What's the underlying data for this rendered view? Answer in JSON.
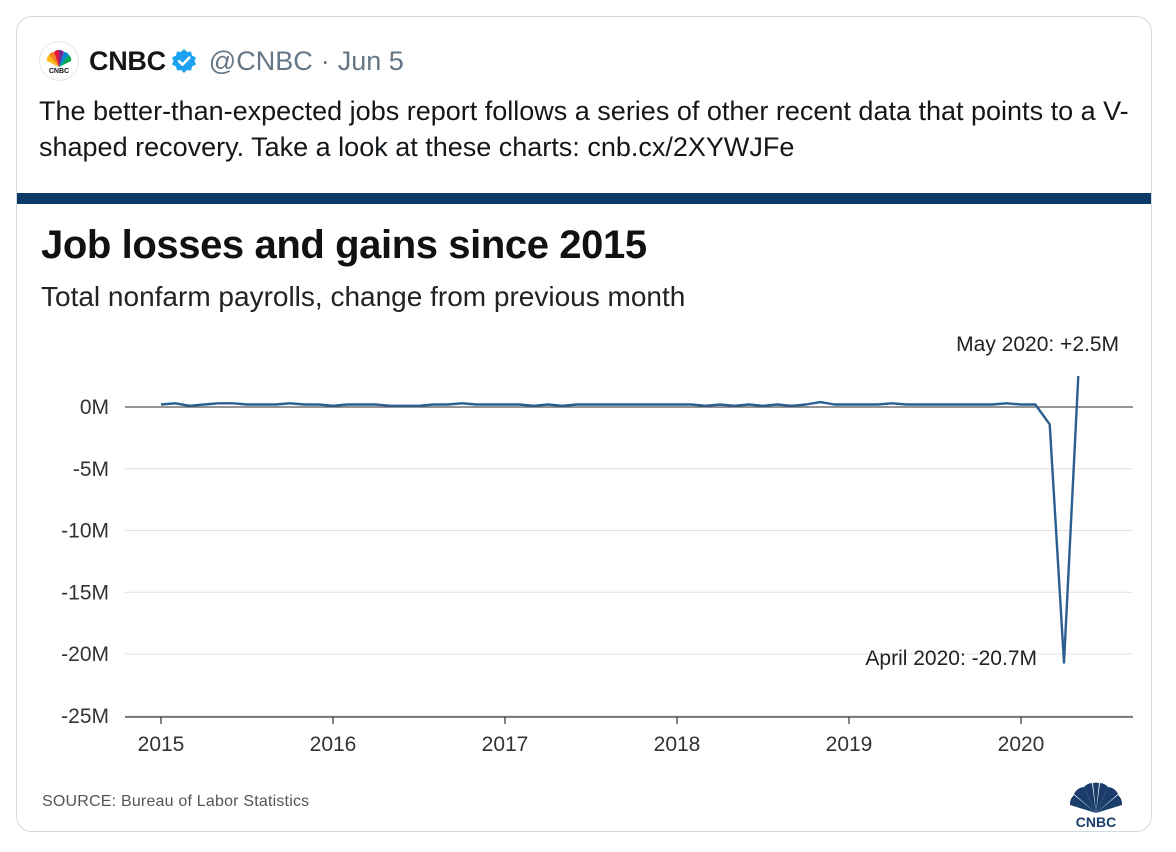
{
  "tweet": {
    "display_name": "CNBC",
    "handle": "@CNBC",
    "separator": "·",
    "date": "Jun 5",
    "verified_icon": "verified-badge-icon",
    "avatar_icon": "cnbc-peacock-logo-icon",
    "text_before_link": "The better-than-expected jobs report follows a series of other recent data that points to a V-shaped recovery. Take a look at these charts: ",
    "link_text": "cnb.cx/2XYWJFe",
    "accent_color": "#1da1f2"
  },
  "chart": {
    "title": "Job losses and gains since 2015",
    "subtitle": "Total nonfarm payrolls, change from previous month",
    "source": "SOURCE: Bureau of Labor Statistics",
    "logo_text": "CNBC",
    "bar_color": "#0b3a66",
    "line_color": "#2a5f8f"
  },
  "chart_data": {
    "type": "line",
    "title": "Job losses and gains since 2015",
    "subtitle": "Total nonfarm payrolls, change from previous month",
    "xlabel": "",
    "ylabel": "",
    "xlim": [
      2015,
      2020.6
    ],
    "ylim": [
      -25,
      2.5
    ],
    "x_ticks": [
      {
        "value": 2015,
        "label": "2015"
      },
      {
        "value": 2016,
        "label": "2016"
      },
      {
        "value": 2017,
        "label": "2017"
      },
      {
        "value": 2018,
        "label": "2018"
      },
      {
        "value": 2019,
        "label": "2019"
      },
      {
        "value": 2020,
        "label": "2020"
      }
    ],
    "y_ticks": [
      {
        "value": 0,
        "label": "0M"
      },
      {
        "value": -5,
        "label": "-5M"
      },
      {
        "value": -10,
        "label": "-10M"
      },
      {
        "value": -15,
        "label": "-15M"
      },
      {
        "value": -20,
        "label": "-20M"
      },
      {
        "value": -25,
        "label": "-25M"
      }
    ],
    "grid": true,
    "legend": "none",
    "series": [
      {
        "name": "",
        "unit": "millions",
        "points": [
          [
            "2015-01",
            0.2
          ],
          [
            "2015-02",
            0.3
          ],
          [
            "2015-03",
            0.1
          ],
          [
            "2015-04",
            0.2
          ],
          [
            "2015-05",
            0.3
          ],
          [
            "2015-06",
            0.3
          ],
          [
            "2015-07",
            0.2
          ],
          [
            "2015-08",
            0.2
          ],
          [
            "2015-09",
            0.2
          ],
          [
            "2015-10",
            0.3
          ],
          [
            "2015-11",
            0.2
          ],
          [
            "2015-12",
            0.2
          ],
          [
            "2016-01",
            0.1
          ],
          [
            "2016-02",
            0.2
          ],
          [
            "2016-03",
            0.2
          ],
          [
            "2016-04",
            0.2
          ],
          [
            "2016-05",
            0.1
          ],
          [
            "2016-06",
            0.1
          ],
          [
            "2016-07",
            0.1
          ],
          [
            "2016-08",
            0.2
          ],
          [
            "2016-09",
            0.2
          ],
          [
            "2016-10",
            0.3
          ],
          [
            "2016-11",
            0.2
          ],
          [
            "2016-12",
            0.2
          ],
          [
            "2017-01",
            0.2
          ],
          [
            "2017-02",
            0.2
          ],
          [
            "2017-03",
            0.1
          ],
          [
            "2017-04",
            0.2
          ],
          [
            "2017-05",
            0.1
          ],
          [
            "2017-06",
            0.2
          ],
          [
            "2017-07",
            0.2
          ],
          [
            "2017-08",
            0.2
          ],
          [
            "2017-09",
            0.2
          ],
          [
            "2017-10",
            0.2
          ],
          [
            "2017-11",
            0.2
          ],
          [
            "2017-12",
            0.2
          ],
          [
            "2018-01",
            0.2
          ],
          [
            "2018-02",
            0.2
          ],
          [
            "2018-03",
            0.1
          ],
          [
            "2018-04",
            0.2
          ],
          [
            "2018-05",
            0.1
          ],
          [
            "2018-06",
            0.2
          ],
          [
            "2018-07",
            0.1
          ],
          [
            "2018-08",
            0.2
          ],
          [
            "2018-09",
            0.1
          ],
          [
            "2018-10",
            0.2
          ],
          [
            "2018-11",
            0.4
          ],
          [
            "2018-12",
            0.2
          ],
          [
            "2019-01",
            0.2
          ],
          [
            "2019-02",
            0.2
          ],
          [
            "2019-03",
            0.2
          ],
          [
            "2019-04",
            0.3
          ],
          [
            "2019-05",
            0.2
          ],
          [
            "2019-06",
            0.2
          ],
          [
            "2019-07",
            0.2
          ],
          [
            "2019-08",
            0.2
          ],
          [
            "2019-09",
            0.2
          ],
          [
            "2019-10",
            0.2
          ],
          [
            "2019-11",
            0.2
          ],
          [
            "2019-12",
            0.3
          ],
          [
            "2020-01",
            0.2
          ],
          [
            "2020-02",
            0.2
          ],
          [
            "2020-03",
            -1.4
          ],
          [
            "2020-04",
            -20.7
          ],
          [
            "2020-05",
            2.5
          ]
        ]
      }
    ],
    "annotations": [
      {
        "text": "May 2020: +2.5M",
        "x": "2020-05",
        "y": 2.5
      },
      {
        "text": "April 2020: -20.7M",
        "x": "2020-04",
        "y": -20.7
      }
    ]
  }
}
